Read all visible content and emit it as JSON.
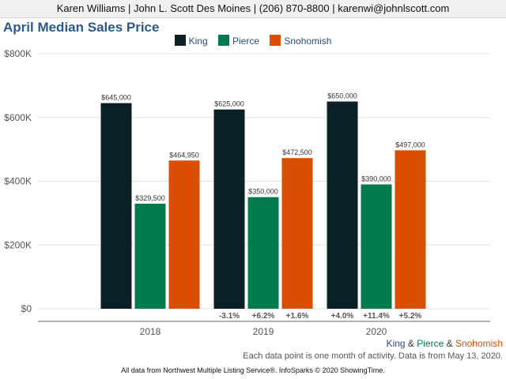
{
  "agent_bar": "Karen Williams | John L. Scott Des Moines | (206) 870-8800 | karenwi@johnlscott.com",
  "colors": {
    "King": "#0a1f26",
    "Pierce": "#027a4d",
    "Snohomish": "#d94e00"
  },
  "chart_data": {
    "type": "bar",
    "title": "April Median Sales Price",
    "categories": [
      "2018",
      "2019",
      "2020"
    ],
    "series": [
      {
        "name": "King",
        "values": [
          645000,
          625000,
          650000
        ],
        "labels": [
          "$645,000",
          "$625,000",
          "$650,000"
        ],
        "changes": [
          "",
          "-3.1%",
          "+4.0%"
        ]
      },
      {
        "name": "Pierce",
        "values": [
          329500,
          350000,
          390000
        ],
        "labels": [
          "$329,500",
          "$350,000",
          "$390,000"
        ],
        "changes": [
          "",
          "+6.2%",
          "+11.4%"
        ]
      },
      {
        "name": "Snohomish",
        "values": [
          464950,
          472500,
          497000
        ],
        "labels": [
          "$464,950",
          "$472,500",
          "$497,000"
        ],
        "changes": [
          "",
          "+1.6%",
          "+5.2%"
        ]
      }
    ],
    "yticks": [
      0,
      200000,
      400000,
      600000,
      800000
    ],
    "ytick_labels": [
      "$0",
      "$200K",
      "$400K",
      "$600K",
      "$800K"
    ],
    "ylim": [
      0,
      800000
    ],
    "grid": true,
    "legend_position": "top-center"
  },
  "footer": {
    "king": "King",
    "amp1": " & ",
    "pierce": "Pierce",
    "amp2": " & ",
    "snohomish": "Snohomish",
    "note": "Each data point is one month of activity. Data is from May 13, 2020.",
    "source": "All data from Northwest Multiple Listing Service®. InfoSparks © 2020 ShowingTime."
  }
}
